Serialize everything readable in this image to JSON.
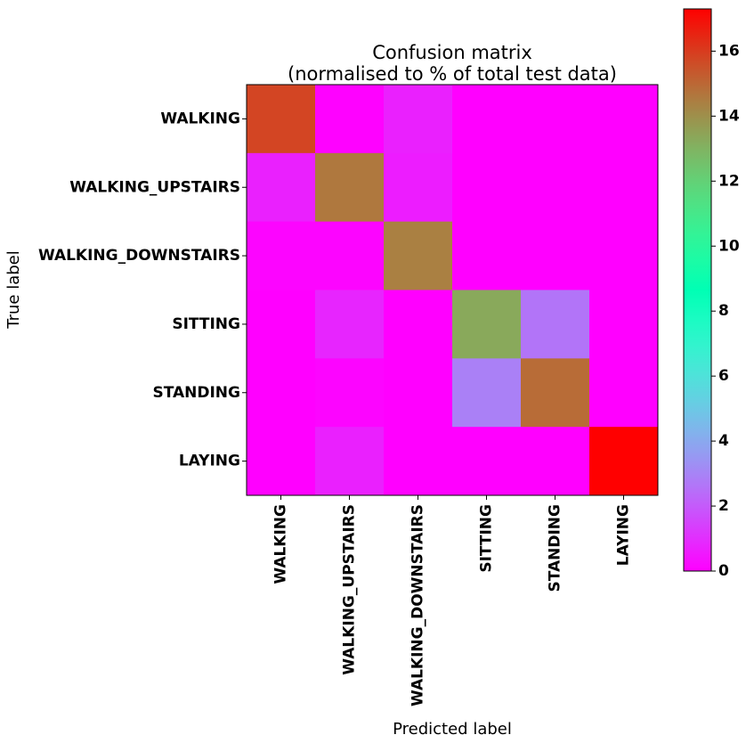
{
  "chart_data": {
    "type": "heatmap",
    "title_lines": [
      "Confusion matrix",
      "(normalised to % of total test data)"
    ],
    "xlabel": "Predicted label",
    "ylabel": "True label",
    "row_labels": [
      "WALKING",
      "WALKING_UPSTAIRS",
      "WALKING_DOWNSTAIRS",
      "SITTING",
      "STANDING",
      "LAYING"
    ],
    "col_labels": [
      "WALKING",
      "WALKING_UPSTAIRS",
      "WALKING_DOWNSTAIRS",
      "SITTING",
      "STANDING",
      "LAYING"
    ],
    "values": [
      [
        15.8,
        0.05,
        0.7,
        0.0,
        0.0,
        0.0
      ],
      [
        0.7,
        14.6,
        0.6,
        0.0,
        0.0,
        0.0
      ],
      [
        0.1,
        0.1,
        14.4,
        0.0,
        0.0,
        0.0
      ],
      [
        0.0,
        0.8,
        0.0,
        13.3,
        2.6,
        0.0
      ],
      [
        0.0,
        0.1,
        0.0,
        2.9,
        14.9,
        0.0
      ],
      [
        0.0,
        0.7,
        0.0,
        0.0,
        0.0,
        17.3
      ]
    ],
    "colormap": "rainbow",
    "colorbar": {
      "vmin": 0,
      "vmax": 17.3,
      "ticks": [
        0,
        2,
        4,
        6,
        8,
        10,
        12,
        14,
        16
      ]
    },
    "grid": false
  }
}
